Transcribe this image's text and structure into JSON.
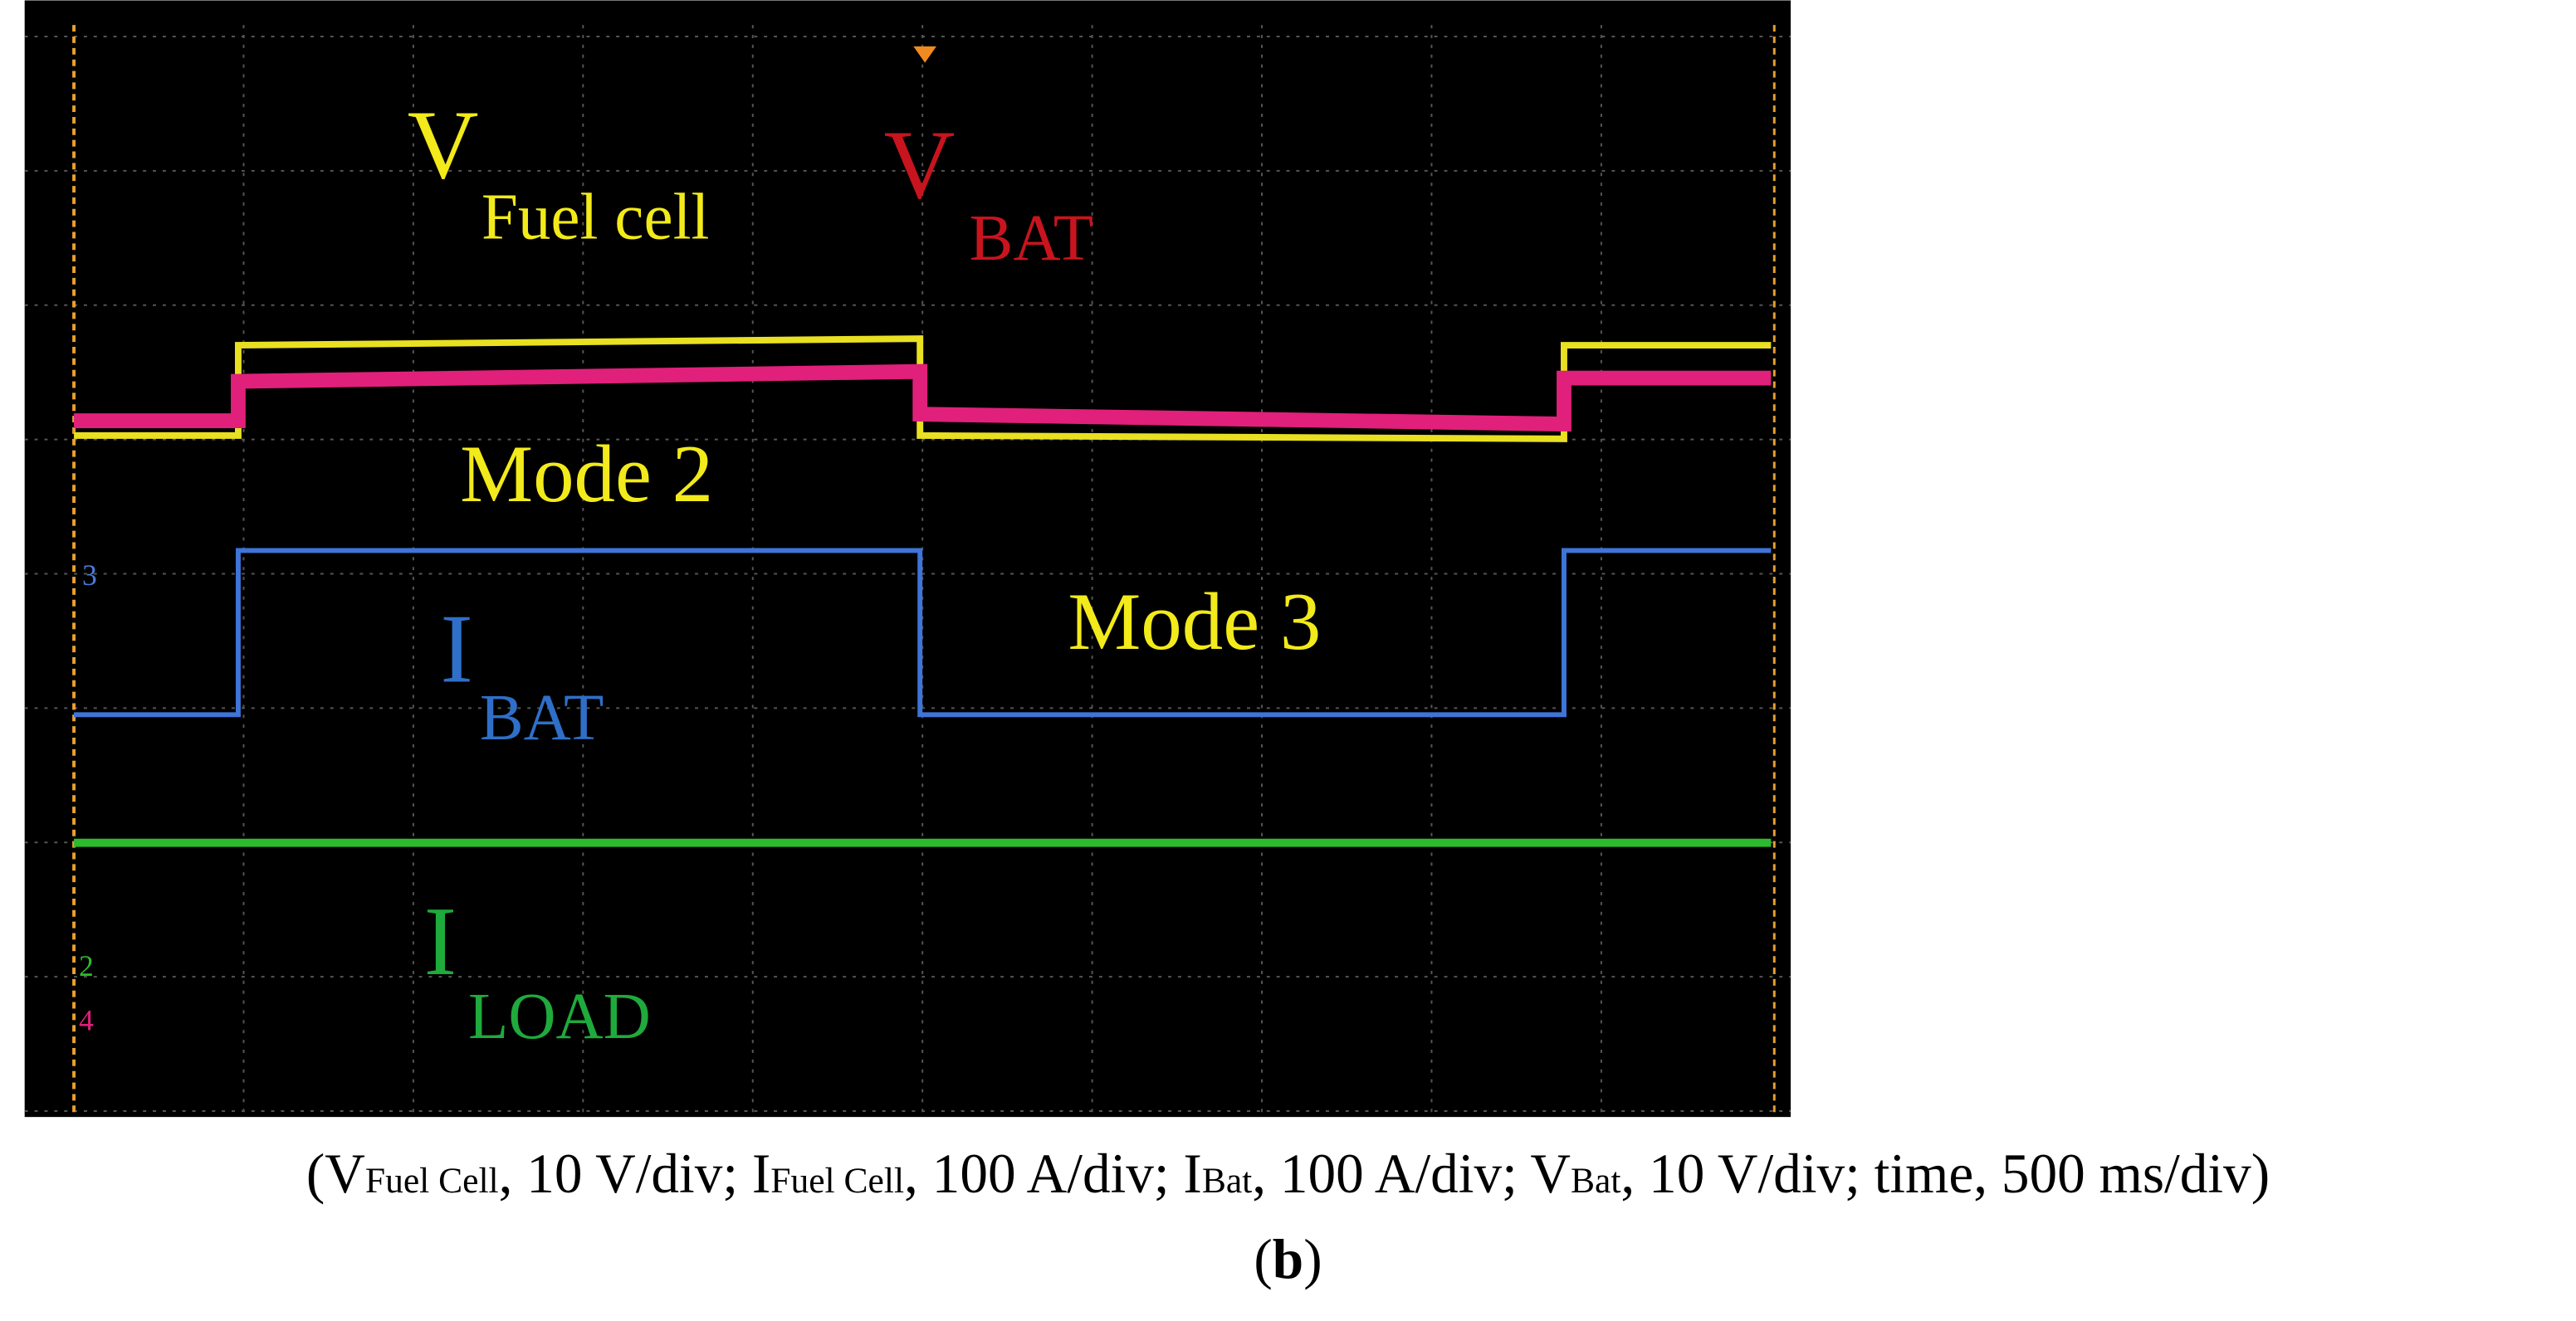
{
  "trace_labels": [
    {
      "main": "V",
      "sub": "Fuel cell",
      "color": "#f2ea1a"
    },
    {
      "main": "V",
      "sub": "BAT",
      "color": "#c8141e"
    },
    {
      "main": "I",
      "sub": "BAT",
      "color": "#2f6fc8"
    },
    {
      "main": "I",
      "sub": "LOAD",
      "color": "#1faa3c"
    }
  ],
  "modes": [
    "Mode 2",
    "Mode 3"
  ],
  "channel_markers": [
    "3",
    "2",
    "4"
  ],
  "caption": [
    "(V",
    "Fuel Cell",
    ", 10 V/div; I",
    "Fuel Cell",
    ", 100 A/div; I",
    "Bat",
    ", 100 A/div; V",
    "Bat",
    ", 10 V/div; time, 500 ms/div)"
  ],
  "panel": [
    "(",
    "b",
    ")"
  ]
}
